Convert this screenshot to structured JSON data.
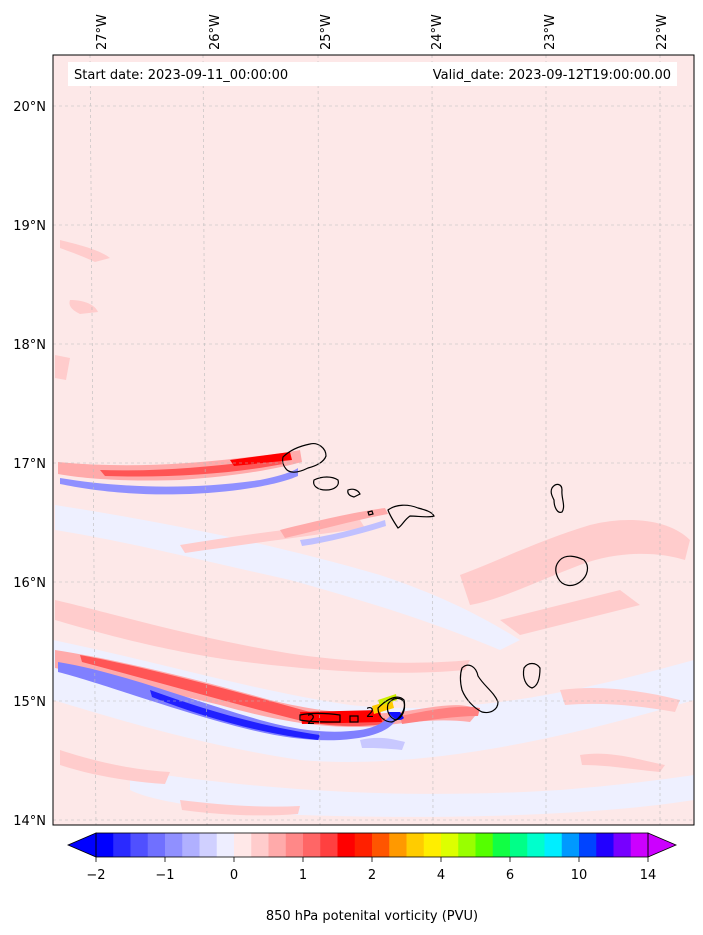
{
  "map": {
    "start_date": "Start date: 2023-09-11_00:00:00",
    "valid_date": "Valid_date: 2023-09-12T19:00:00.00",
    "lon_labels": [
      "27°W",
      "26°W",
      "25°W",
      "24°W",
      "23°W",
      "22°W"
    ],
    "lat_labels": [
      "20°N",
      "19°N",
      "18°N",
      "17°N",
      "16°N",
      "15°N",
      "14°N"
    ],
    "contour_labels": [
      "2",
      "2"
    ],
    "background_color": "#fde8e8",
    "coast_color": "#000000"
  },
  "colorbar": {
    "tick_labels": [
      "−2",
      "−1",
      "0",
      "1",
      "2",
      "4",
      "6",
      "10",
      "14"
    ],
    "title": "850 hPa potenital vorticity (PVU)",
    "colors": [
      "#0000ff",
      "#2a2aff",
      "#5050ff",
      "#7070ff",
      "#9090ff",
      "#b0b0ff",
      "#d0d0ff",
      "#eeeeff",
      "#ffe8e8",
      "#ffcccc",
      "#ffaaaa",
      "#ff8888",
      "#ff6666",
      "#ff4040",
      "#ff0000",
      "#ff2000",
      "#ff5500",
      "#ff9900",
      "#ffcc00",
      "#ffee00",
      "#ddff00",
      "#99ff00",
      "#55ff00",
      "#11ff44",
      "#00ff88",
      "#00ffcc",
      "#00eeff",
      "#0099ff",
      "#0044ff",
      "#2200ff",
      "#7700ff",
      "#cc00ff"
    ]
  }
}
